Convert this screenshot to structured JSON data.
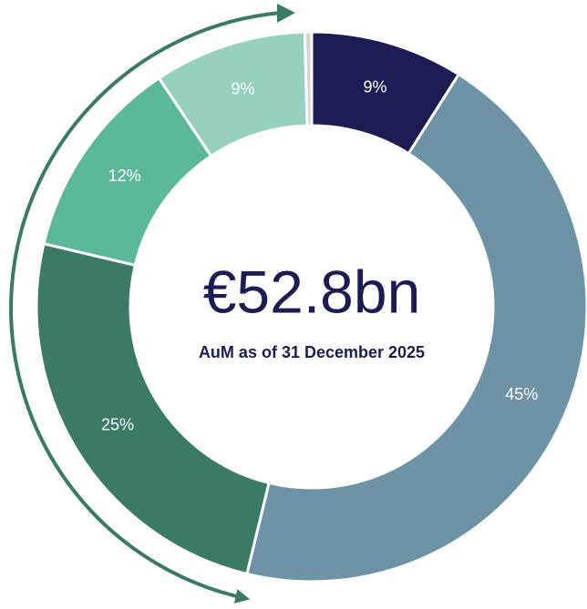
{
  "chart_data": {
    "type": "donut",
    "title": "€52.8bn",
    "subtitle": "AuM as of 31 December 2025",
    "values": [
      9,
      45,
      25,
      12,
      9,
      0.4
    ],
    "value_labels": [
      "9%",
      "45%",
      "25%",
      "12%",
      "9%",
      null
    ],
    "colors": [
      "#1c1b54",
      "#6e93a6",
      "#3a7a66",
      "#5bb89b",
      "#96d0bf",
      "#d4d4d4"
    ]
  }
}
